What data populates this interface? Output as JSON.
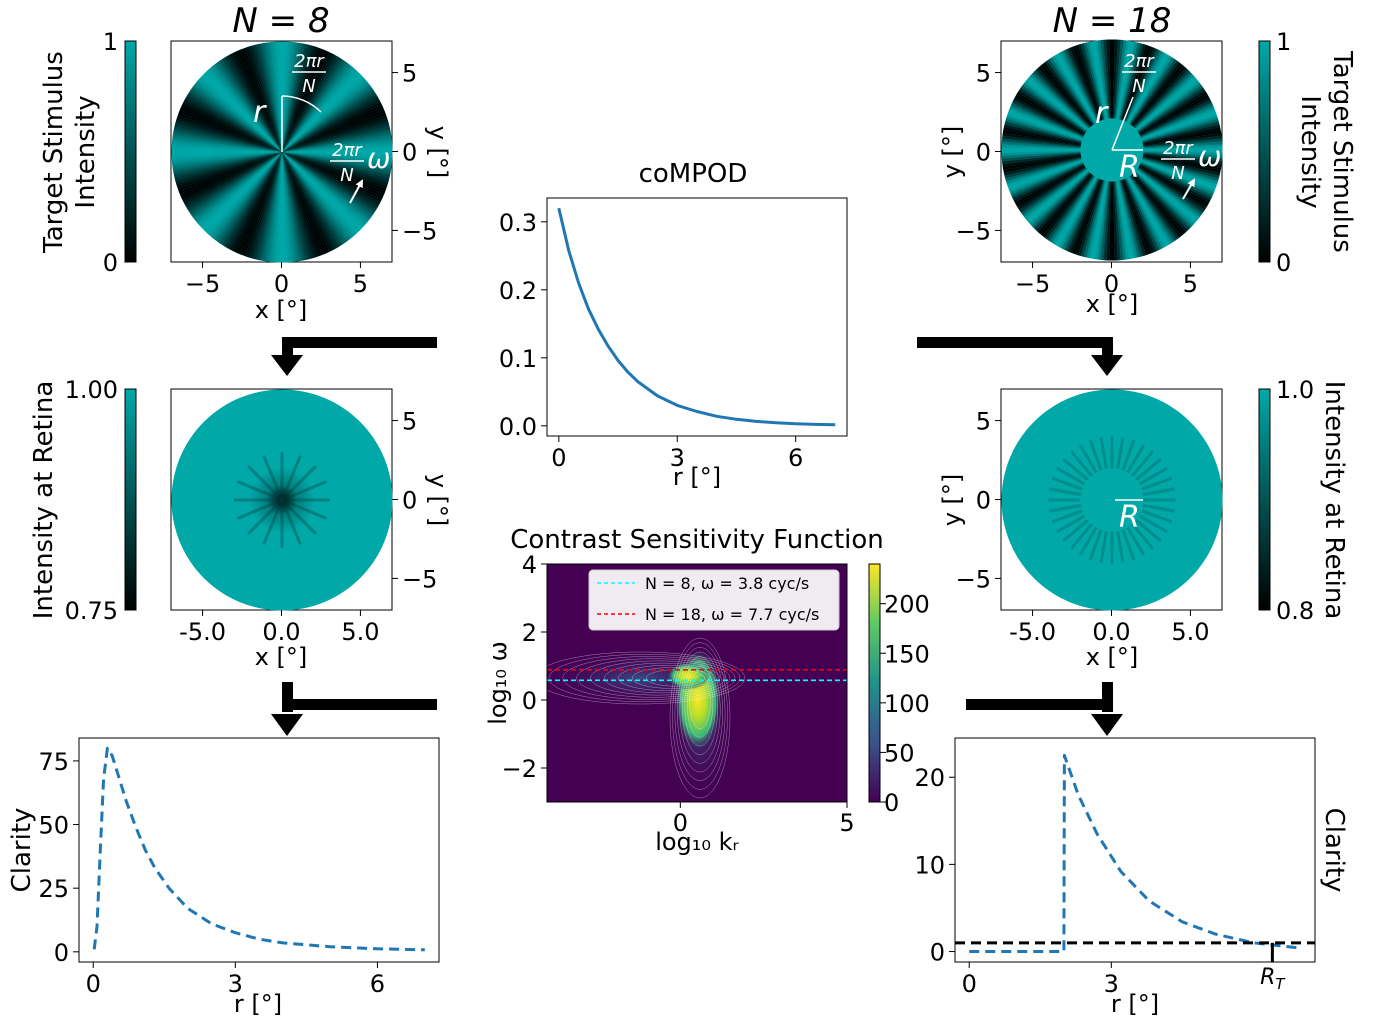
{
  "colors": {
    "teal": "#00a8a8",
    "line": "#1f77b4",
    "cyan_line": "#00ffff",
    "red_line": "#ff0000"
  },
  "chart_data": [
    {
      "id": "stim8",
      "type": "heatmap",
      "title": "N = 8",
      "xlabel": "x [°]",
      "ylabel": "y [°]",
      "xticks": [
        "−5",
        "0",
        "5"
      ],
      "yticks": [
        "5",
        "0",
        "−5"
      ],
      "xlim": [
        -7,
        7
      ],
      "ylim": [
        -7,
        7
      ],
      "spokes": 8,
      "hole_radius": 0,
      "colorbar": {
        "label_lines": [
          "Target Stimulus",
          "Intensity"
        ],
        "range": [
          0,
          1
        ],
        "ticks": [
          "1",
          "0"
        ]
      },
      "annotations": {
        "r": "r",
        "arc_num": "2πr",
        "arc_den": "N",
        "omega": "ω"
      }
    },
    {
      "id": "stim18",
      "type": "heatmap",
      "title": "N = 18",
      "xlabel": "x [°]",
      "ylabel": "y [°]",
      "xticks": [
        "−5",
        "0",
        "5"
      ],
      "yticks": [
        "5",
        "0",
        "−5"
      ],
      "xlim": [
        -7,
        7
      ],
      "ylim": [
        -7,
        7
      ],
      "spokes": 18,
      "hole_radius": 2,
      "colorbar": {
        "label_lines": [
          "Target Stimulus",
          "Intensity"
        ],
        "range": [
          0,
          1
        ],
        "ticks": [
          "1",
          "0"
        ]
      },
      "annotations": {
        "r": "r",
        "R": "R",
        "arc_num": "2πr",
        "arc_den": "N",
        "omega": "ω"
      }
    },
    {
      "id": "compod",
      "type": "line",
      "title": "coMPOD",
      "xlabel": "r [°]",
      "ylabel": "",
      "x": [
        0,
        0.25,
        0.5,
        0.75,
        1,
        1.25,
        1.5,
        1.75,
        2,
        2.5,
        3,
        3.5,
        4,
        4.5,
        5,
        5.5,
        6,
        6.5,
        7
      ],
      "y": [
        0.32,
        0.258,
        0.21,
        0.172,
        0.142,
        0.117,
        0.096,
        0.079,
        0.065,
        0.044,
        0.03,
        0.021,
        0.014,
        0.0095,
        0.0065,
        0.0045,
        0.003,
        0.002,
        0.0015
      ],
      "xlim": [
        -0.3,
        7.3
      ],
      "ylim": [
        -0.015,
        0.335
      ],
      "xticks": [
        "0",
        "3",
        "6"
      ],
      "yticks": [
        "0.3",
        "0.2",
        "0.1",
        "0.0"
      ]
    },
    {
      "id": "ret8",
      "type": "heatmap",
      "title": "",
      "xlabel": "x [°]",
      "ylabel": "y [°]",
      "xticks": [
        "-5.0",
        "0.0",
        "5.0"
      ],
      "yticks": [
        "5",
        "0",
        "−5"
      ],
      "xlim": [
        -7,
        7
      ],
      "ylim": [
        -7,
        7
      ],
      "colorbar": {
        "label_lines": [
          "Intensity at Retina"
        ],
        "range": [
          0.75,
          1.0
        ],
        "ticks": [
          "1.00",
          "0.75"
        ]
      }
    },
    {
      "id": "ret18",
      "type": "heatmap",
      "title": "",
      "xlabel": "x [°]",
      "ylabel": "y [°]",
      "xticks": [
        "-5.0",
        "0.0",
        "5.0"
      ],
      "yticks": [
        "5",
        "0",
        "−5"
      ],
      "xlim": [
        -7,
        7
      ],
      "ylim": [
        -7,
        7
      ],
      "colorbar": {
        "label_lines": [
          "Intensity at Retina"
        ],
        "range": [
          0.8,
          1.0
        ],
        "ticks": [
          "1.0",
          "0.8"
        ]
      },
      "annotations": {
        "R": "R"
      }
    },
    {
      "id": "csf",
      "type": "heatmap",
      "title": "Contrast Sensitivity Function",
      "xlabel": "log₁₀ kᵣ",
      "ylabel": "log₁₀ ω",
      "xlim": [
        -4,
        5
      ],
      "ylim": [
        -3,
        4
      ],
      "xticks": [
        "0",
        "5"
      ],
      "yticks": [
        "4",
        "2",
        "0",
        "−2"
      ],
      "colorbar": {
        "range": [
          0,
          240
        ],
        "ticks": [
          "200",
          "150",
          "100",
          "50",
          "0"
        ]
      },
      "lines": [
        {
          "name": "N = 8, ω = 3.8 cyc/s",
          "y": 0.58,
          "color": "#00ffff"
        },
        {
          "name": "N = 18, ω = 7.7 cyc/s",
          "y": 0.886,
          "color": "#ff0000"
        }
      ]
    },
    {
      "id": "clar8",
      "type": "line",
      "title": "",
      "xlabel": "r [°]",
      "ylabel": "Clarity",
      "x": [
        0.02,
        0.08,
        0.15,
        0.22,
        0.3,
        0.4,
        0.55,
        0.7,
        0.9,
        1.1,
        1.3,
        1.6,
        2,
        2.5,
        3,
        3.5,
        4,
        5,
        6,
        7
      ],
      "y": [
        1,
        10,
        40,
        68,
        80,
        77,
        68,
        59,
        49,
        40,
        33,
        25,
        17,
        11,
        7.5,
        5,
        3.5,
        2,
        1.2,
        0.8
      ],
      "xlim": [
        -0.3,
        7.3
      ],
      "ylim": [
        -4,
        84
      ],
      "xticks": [
        "0",
        "3",
        "6"
      ],
      "yticks": [
        "75",
        "50",
        "25",
        "0"
      ]
    },
    {
      "id": "clar18",
      "type": "line",
      "title": "",
      "xlabel": "r [°]",
      "ylabel": "Clarity",
      "x": [
        0,
        1.5,
        1.98,
        2,
        2.01,
        2.3,
        2.7,
        3.2,
        3.8,
        4.5,
        5.2,
        6,
        7
      ],
      "y": [
        0,
        0,
        0,
        0,
        22.5,
        18,
        13.5,
        9.2,
        5.8,
        3.4,
        2,
        1,
        0.4
      ],
      "xlim": [
        -0.3,
        7.3
      ],
      "ylim": [
        -1.2,
        24.5
      ],
      "xticks": [
        "0",
        "3"
      ],
      "yticks": [
        "20",
        "10",
        "0"
      ],
      "threshold": 1,
      "RT_value": 6.4,
      "RT_label": "R_T"
    }
  ]
}
